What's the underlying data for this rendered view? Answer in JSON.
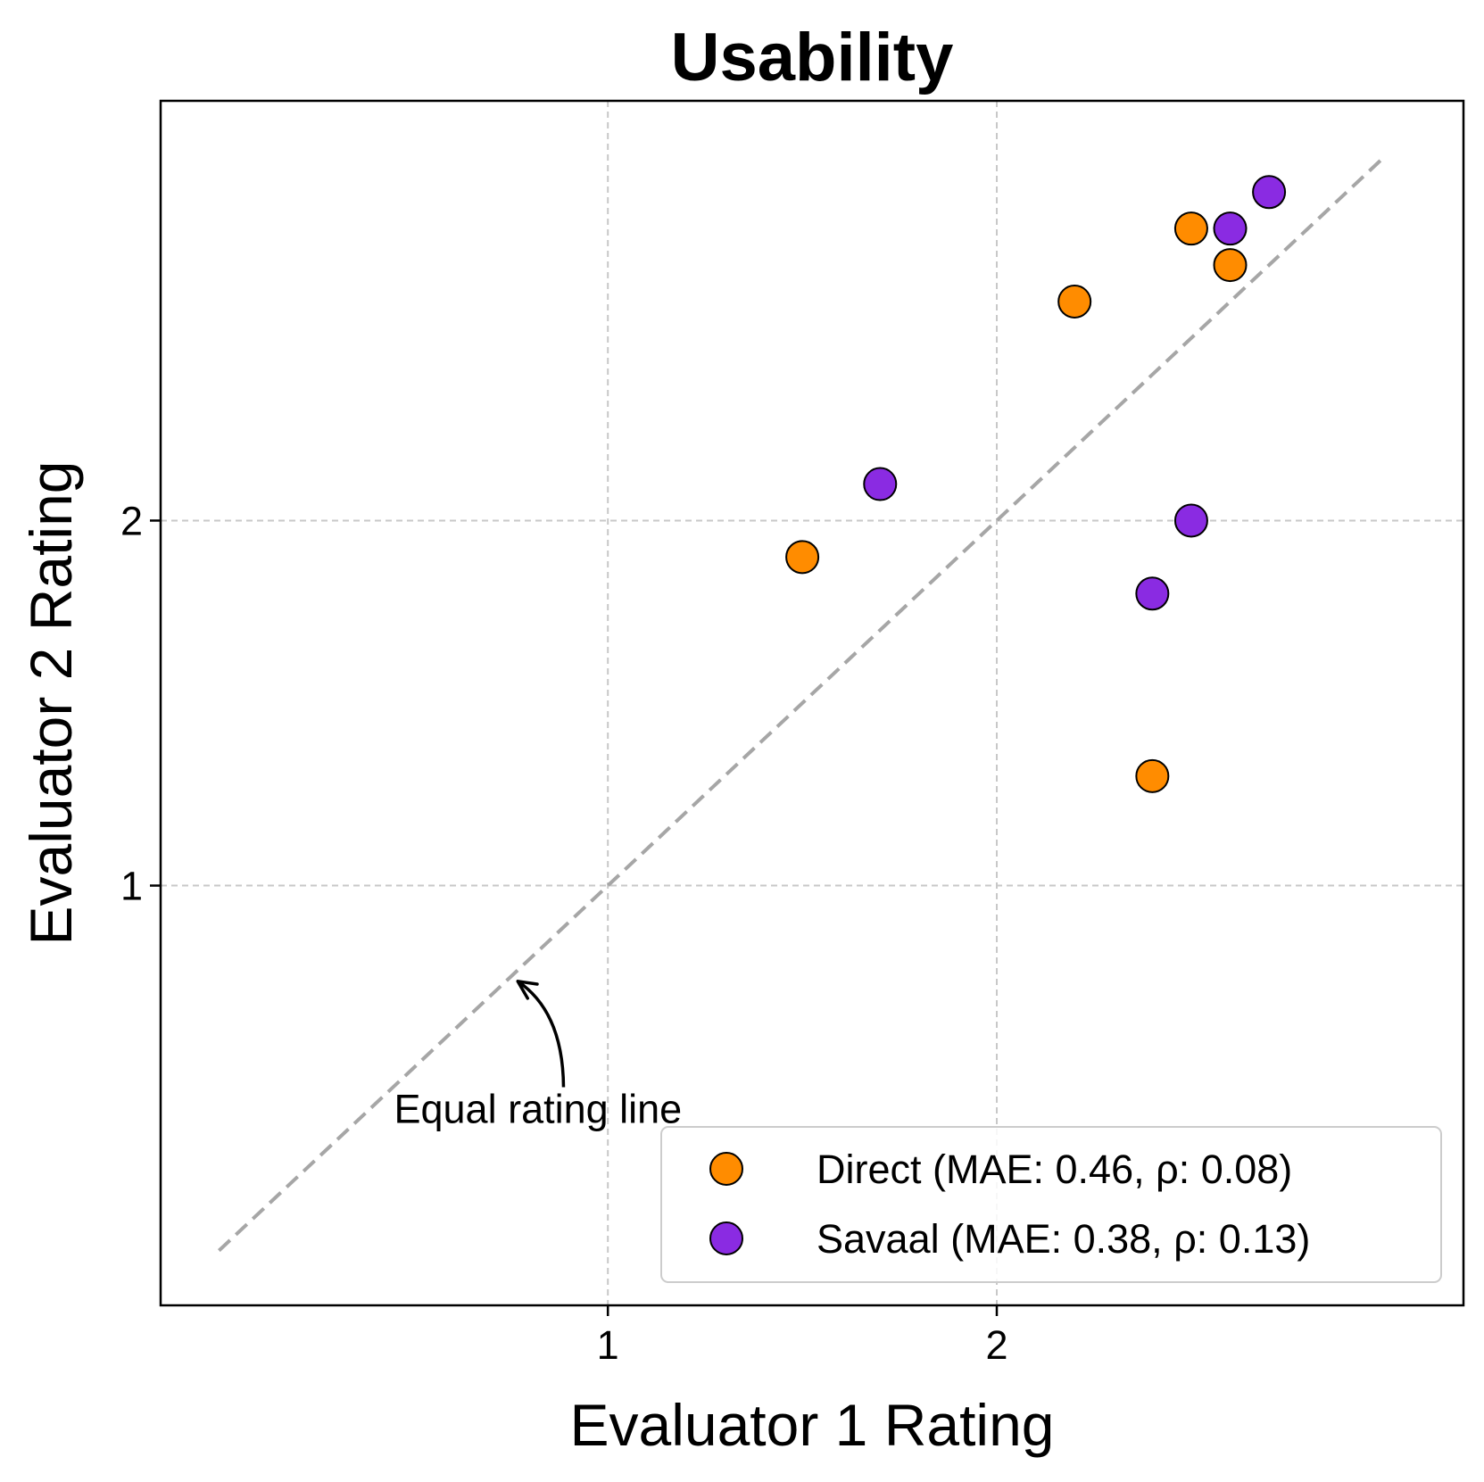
{
  "chart_data": {
    "type": "scatter",
    "title": "Usability",
    "xlabel": "Evaluator 1 Rating",
    "ylabel": "Evaluator 2 Rating",
    "xlim": [
      -0.15,
      3.2
    ],
    "ylim": [
      -0.15,
      3.15
    ],
    "xticks": [
      1,
      2
    ],
    "yticks": [
      1,
      2
    ],
    "grid": true,
    "legend_position": "lower-right",
    "reference_line": {
      "label": "Equal rating line",
      "from": [
        0,
        0
      ],
      "to": [
        3.0,
        3.0
      ],
      "color": "#a6a6a6"
    },
    "annotation": {
      "text": "Equal rating line",
      "text_at": [
        0.45,
        0.35
      ],
      "arrow_to": [
        0.75,
        0.75
      ]
    },
    "series": [
      {
        "name": "Direct (MAE: 0.46, ρ: 0.08)",
        "color": "#ff8c00",
        "points": [
          [
            1.5,
            1.9
          ],
          [
            2.2,
            2.6
          ],
          [
            2.5,
            2.8
          ],
          [
            2.6,
            2.7
          ],
          [
            2.4,
            1.3
          ]
        ]
      },
      {
        "name": "Savaal (MAE: 0.38, ρ: 0.13)",
        "color": "#8a2be2",
        "points": [
          [
            1.7,
            2.1
          ],
          [
            2.5,
            2.0
          ],
          [
            2.4,
            1.8
          ],
          [
            2.6,
            2.8
          ],
          [
            2.7,
            2.9
          ]
        ]
      }
    ]
  }
}
